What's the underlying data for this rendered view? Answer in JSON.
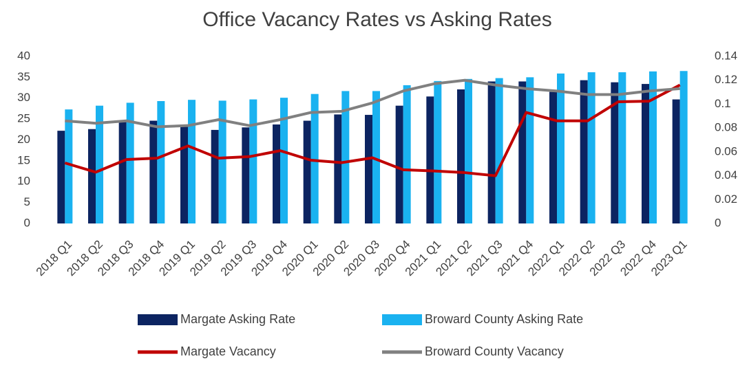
{
  "chart_data": {
    "type": "bar",
    "title": "Office Vacancy Rates vs Asking Rates",
    "categories": [
      "2018 Q1",
      "2018 Q2",
      "2018 Q3",
      "2018 Q4",
      "2019 Q1",
      "2019 Q2",
      "2019 Q3",
      "2019 Q4",
      "2020 Q1",
      "2020 Q2",
      "2020 Q3",
      "2020 Q4",
      "2021 Q1",
      "2021 Q2",
      "2021 Q3",
      "2021 Q4",
      "2022 Q1",
      "2022 Q2",
      "2022 Q3",
      "2022 Q4",
      "2023 Q1"
    ],
    "series": [
      {
        "name": "Margate Asking Rate",
        "type": "bar",
        "color": "#0c2461",
        "values": [
          22.2,
          22.6,
          24.5,
          24.6,
          23.3,
          22.4,
          23.0,
          23.7,
          24.6,
          26.1,
          26.0,
          28.2,
          30.4,
          32.1,
          34.0,
          34.0,
          31.5,
          34.3,
          33.8,
          33.4,
          29.7
        ]
      },
      {
        "name": "Broward County Asking Rate",
        "type": "bar",
        "color": "#1ab2f0",
        "values": [
          27.3,
          28.2,
          28.9,
          29.3,
          29.6,
          29.4,
          29.7,
          30.1,
          31.0,
          31.7,
          31.7,
          33.1,
          34.1,
          34.6,
          34.8,
          35.0,
          35.9,
          36.2,
          36.2,
          36.4,
          36.5
        ]
      },
      {
        "name": "Margate Vacancy",
        "type": "line",
        "axis": "y2",
        "color": "#c00000",
        "values": [
          0.0507,
          0.043,
          0.0536,
          0.0547,
          0.065,
          0.0547,
          0.056,
          0.061,
          0.053,
          0.051,
          0.055,
          0.045,
          0.044,
          0.0426,
          0.04,
          0.093,
          0.086,
          0.086,
          0.102,
          0.1025,
          0.116
        ]
      },
      {
        "name": "Broward County Vacancy",
        "type": "line",
        "axis": "y2",
        "color": "#808080",
        "values": [
          0.086,
          0.084,
          0.086,
          0.081,
          0.082,
          0.087,
          0.082,
          0.087,
          0.093,
          0.094,
          0.101,
          0.111,
          0.117,
          0.12,
          0.116,
          0.113,
          0.111,
          0.108,
          0.108,
          0.111,
          0.113
        ]
      }
    ],
    "ylim": [
      0,
      40
    ],
    "yticks": [
      0,
      5,
      10,
      15,
      20,
      25,
      30,
      35,
      40
    ],
    "y2lim": [
      0,
      0.14
    ],
    "y2ticks": [
      0,
      0.02,
      0.04,
      0.06,
      0.08,
      0.1,
      0.12,
      0.14
    ]
  }
}
